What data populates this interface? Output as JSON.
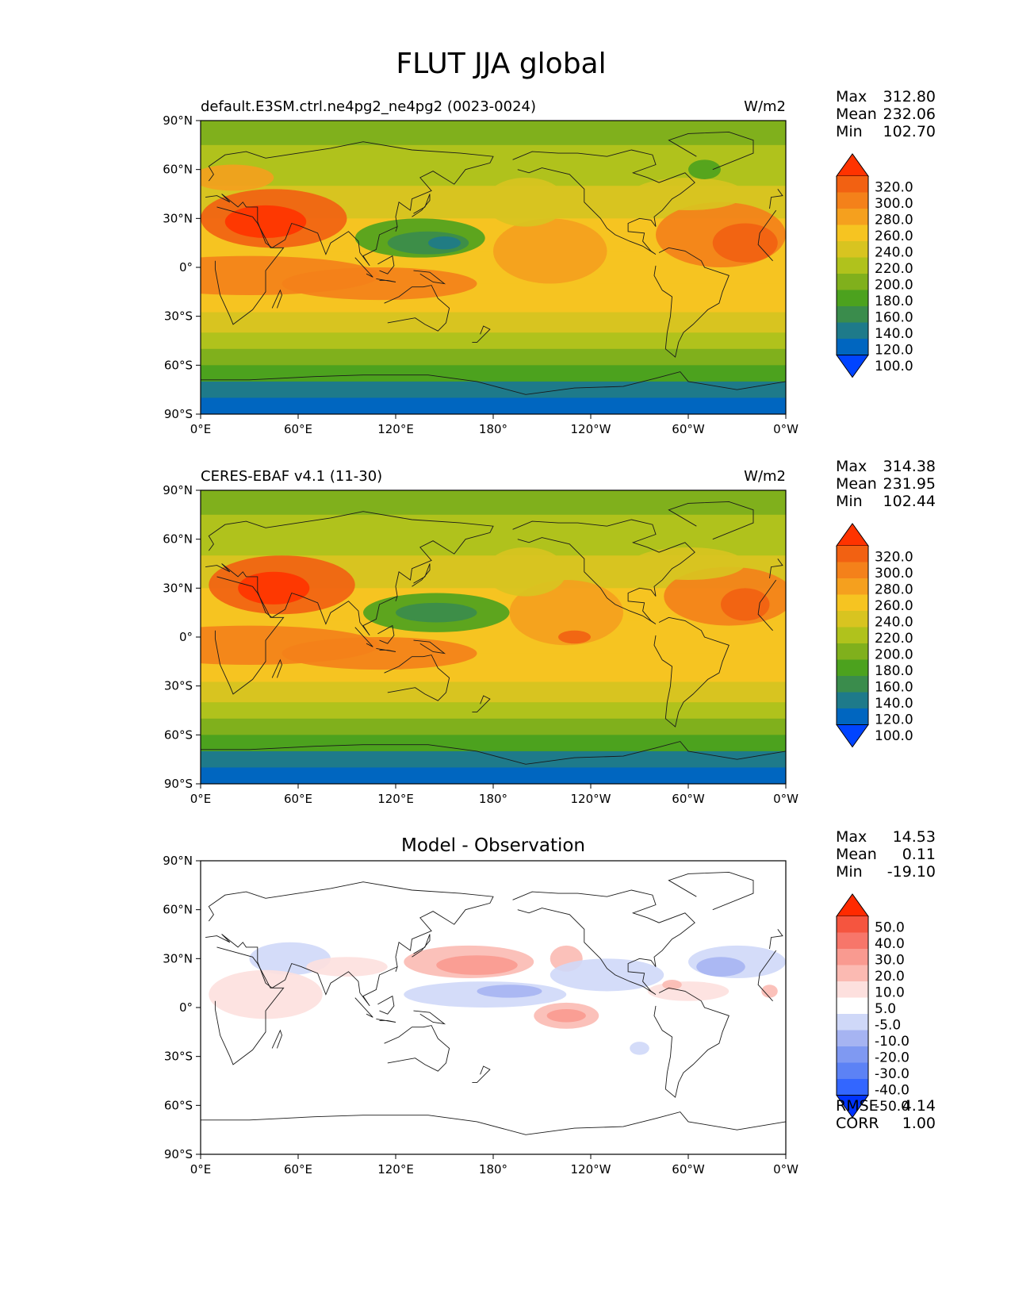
{
  "figure": {
    "title": "FLUT JJA global",
    "panels": [
      {
        "id": "model",
        "left_title": "default.E3SM.ctrl.ne4pg2_ne4pg2 (0023-0024)",
        "center_title": "",
        "units": "W/m2",
        "stats": [
          {
            "label": "Max",
            "value": "312.80"
          },
          {
            "label": "Mean",
            "value": "232.06"
          },
          {
            "label": "Min",
            "value": "102.70"
          }
        ],
        "extra_stats": [],
        "colorbar": {
          "colors": [
            "#0044ff",
            "#0066c0",
            "#1e7a8a",
            "#3a8c4c",
            "#4ca21e",
            "#80b01c",
            "#b0c21c",
            "#d8c420",
            "#f6c421",
            "#f5a01e",
            "#f4811a",
            "#f26112",
            "#ff3300"
          ],
          "labels": [
            "320.0",
            "300.0",
            "280.0",
            "260.0",
            "240.0",
            "220.0",
            "200.0",
            "180.0",
            "160.0",
            "140.0",
            "120.0",
            "100.0"
          ]
        }
      },
      {
        "id": "obs",
        "left_title": "CERES-EBAF v4.1 (11-30)",
        "center_title": "",
        "units": "W/m2",
        "stats": [
          {
            "label": "Max",
            "value": "314.38"
          },
          {
            "label": "Mean",
            "value": "231.95"
          },
          {
            "label": "Min",
            "value": "102.44"
          }
        ],
        "extra_stats": [],
        "colorbar": {
          "colors": [
            "#0044ff",
            "#0066c0",
            "#1e7a8a",
            "#3a8c4c",
            "#4ca21e",
            "#80b01c",
            "#b0c21c",
            "#d8c420",
            "#f6c421",
            "#f5a01e",
            "#f4811a",
            "#f26112",
            "#ff3300"
          ],
          "labels": [
            "320.0",
            "300.0",
            "280.0",
            "260.0",
            "240.0",
            "220.0",
            "200.0",
            "180.0",
            "160.0",
            "140.0",
            "120.0",
            "100.0"
          ]
        }
      },
      {
        "id": "diff",
        "left_title": "",
        "center_title": "Model - Observation",
        "units": "",
        "stats": [
          {
            "label": "Max",
            "value": "14.53"
          },
          {
            "label": "Mean",
            "value": "0.11"
          },
          {
            "label": "Min",
            "value": "-19.10"
          }
        ],
        "extra_stats": [
          {
            "label": "RMSE",
            "value": "4.14"
          },
          {
            "label": "CORR",
            "value": "1.00"
          }
        ],
        "colorbar": {
          "colors": [
            "#0033ff",
            "#3366ff",
            "#5c82f5",
            "#7f99f2",
            "#a6b4f2",
            "#cfd8f8",
            "#ffffff",
            "#fde0de",
            "#fbbab2",
            "#f99a90",
            "#f7766a",
            "#f5553f",
            "#ff2a00"
          ],
          "labels": [
            "50.0",
            "40.0",
            "30.0",
            "20.0",
            "10.0",
            "5.0",
            "-5.0",
            "-10.0",
            "-20.0",
            "-30.0",
            "-40.0",
            "-50.0"
          ]
        }
      }
    ],
    "x_ticks": [
      "0°E",
      "60°E",
      "120°E",
      "180°",
      "120°W",
      "60°W",
      "0°W"
    ],
    "y_ticks": [
      "90°N",
      "60°N",
      "30°N",
      "0°",
      "30°S",
      "60°S",
      "90°S"
    ]
  }
}
